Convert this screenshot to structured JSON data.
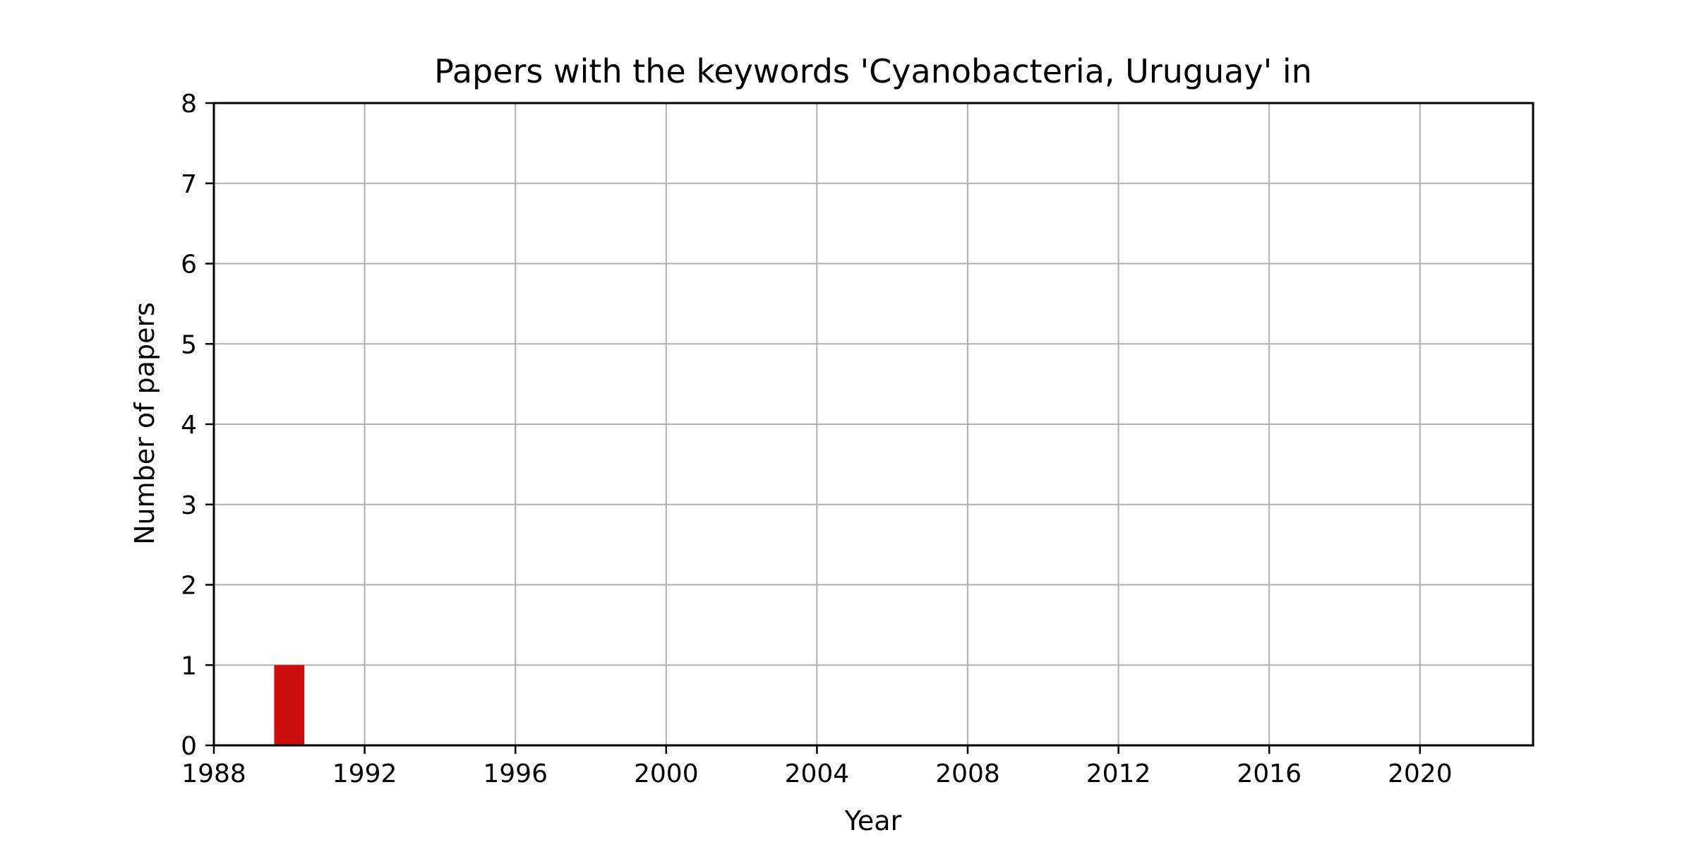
{
  "chart_data": {
    "type": "bar",
    "title": "Papers with the keywords 'Cyanobacteria, Uruguay' in",
    "xlabel": "Year",
    "ylabel": "Number of papers",
    "x": [
      1990
    ],
    "values": [
      1
    ],
    "bar_color": "#cc0e0e",
    "xlim": [
      1988,
      2023
    ],
    "ylim": [
      0,
      8
    ],
    "xticks": [
      1988,
      1992,
      1996,
      2000,
      2004,
      2008,
      2012,
      2016,
      2020
    ],
    "yticks": [
      0,
      1,
      2,
      3,
      4,
      5,
      6,
      7,
      8
    ],
    "grid": true,
    "legend": false
  }
}
